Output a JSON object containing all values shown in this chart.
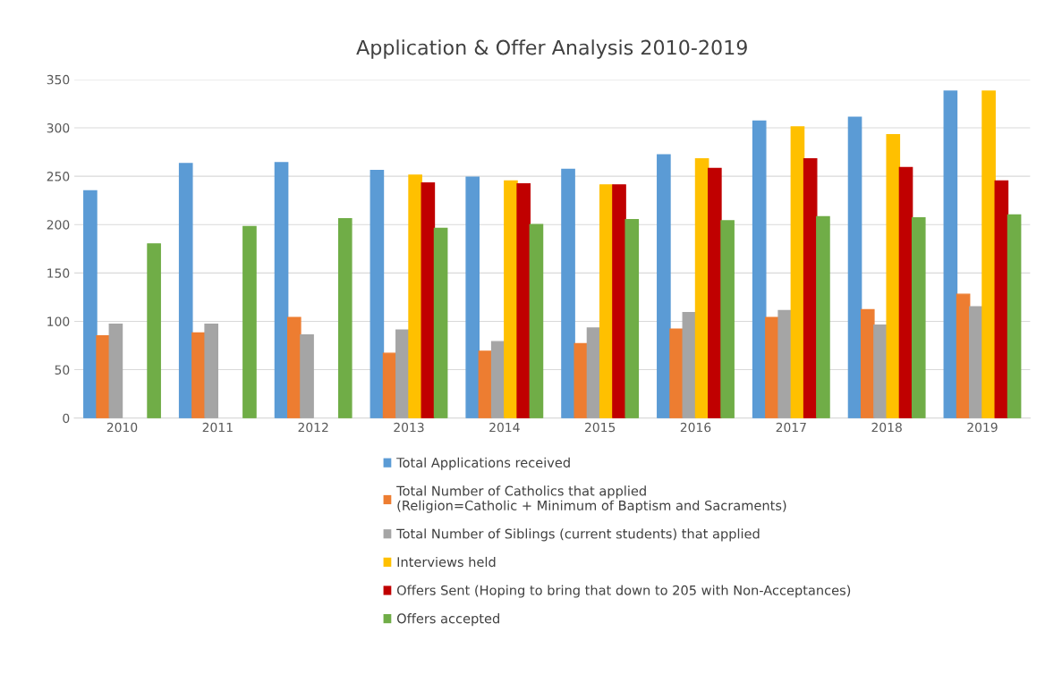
{
  "chart_data": {
    "type": "bar",
    "title": "Application & Offer Analysis 2010-2019",
    "categories": [
      "2010",
      "2011",
      "2012",
      "2013",
      "2014",
      "2015",
      "2016",
      "2017",
      "2018",
      "2019"
    ],
    "series": [
      {
        "name": "Total Applications received",
        "color": "#5b9bd5",
        "values": [
          235,
          263,
          264,
          256,
          249,
          257,
          272,
          307,
          311,
          338
        ]
      },
      {
        "name": "Total Number of Catholics that applied\n(Religion=Catholic + Minimum of Baptism and Sacraments)",
        "color": "#ed7d31",
        "values": [
          85,
          88,
          104,
          67,
          69,
          77,
          92,
          104,
          112,
          128
        ]
      },
      {
        "name": "Total Number of Siblings (current students) that applied",
        "color": "#a5a5a5",
        "values": [
          97,
          97,
          86,
          91,
          79,
          93,
          109,
          111,
          96,
          115
        ]
      },
      {
        "name": "Interviews held",
        "color": "#ffc000",
        "values": [
          null,
          null,
          null,
          251,
          245,
          241,
          268,
          301,
          293,
          338
        ]
      },
      {
        "name": "Offers Sent (Hoping to bring that down to 205 with Non-Acceptances)",
        "color": "#c00000",
        "values": [
          null,
          null,
          null,
          243,
          242,
          241,
          258,
          268,
          259,
          245
        ]
      },
      {
        "name": "Offers accepted",
        "color": "#70ad47",
        "values": [
          180,
          198,
          206,
          196,
          200,
          205,
          204,
          208,
          207,
          210
        ]
      }
    ],
    "ylim": [
      0,
      350
    ],
    "yticks": [
      0,
      50,
      100,
      150,
      200,
      250,
      300,
      350
    ],
    "grid": "y",
    "legend": "bottom"
  }
}
